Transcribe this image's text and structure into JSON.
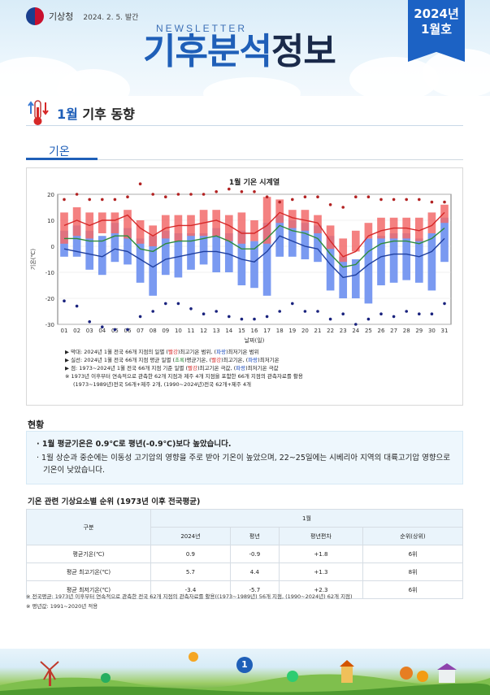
{
  "header": {
    "org": "기상청",
    "date": "2024. 2. 5. 발간",
    "newsletter": "NEWSLETTER",
    "title_bold": "기후분석",
    "title_rest": "정보",
    "badge_year": "2024년",
    "badge_issue": "1월호"
  },
  "section": {
    "month": "1월",
    "title": " 기후 동향",
    "subtitle": "기온"
  },
  "chart_data": {
    "type": "bar",
    "title": "1월 기온 시계열",
    "xlabel": "날짜(일)",
    "ylabel": "기온(℃)",
    "ylim": [
      -30,
      20
    ],
    "yticks": [
      20,
      10,
      0,
      -10,
      -20,
      -30
    ],
    "categories": [
      "01",
      "02",
      "03",
      "04",
      "05",
      "06",
      "07",
      "08",
      "09",
      "10",
      "11",
      "12",
      "13",
      "14",
      "15",
      "16",
      "17",
      "18",
      "19",
      "20",
      "21",
      "22",
      "23",
      "24",
      "25",
      "26",
      "27",
      "28",
      "29",
      "30",
      "31"
    ],
    "bars_tmax_range": {
      "low": [
        1,
        4,
        3,
        5,
        5,
        3,
        1,
        0,
        3,
        2,
        4,
        4,
        4,
        2,
        1,
        2,
        1,
        9,
        7,
        6,
        5,
        -1,
        -6,
        -2,
        3,
        3,
        3,
        3,
        2,
        5,
        9
      ],
      "high": [
        13,
        15,
        13,
        13,
        13,
        14,
        10,
        8,
        12,
        12,
        12,
        14,
        14,
        12,
        13,
        10,
        19,
        18,
        14,
        14,
        12,
        8,
        3,
        6,
        9,
        11,
        11,
        11,
        11,
        13,
        16
      ]
    },
    "bars_tmin_range": {
      "low": [
        -4,
        -4,
        -9,
        -11,
        -6,
        -7,
        -14,
        -19,
        -11,
        -12,
        -9,
        -7,
        -10,
        -10,
        -15,
        -16,
        -19,
        -4,
        -4,
        -5,
        -6,
        -17,
        -20,
        -20,
        -22,
        -15,
        -14,
        -13,
        -14,
        -17,
        -6
      ],
      "high": [
        6,
        8,
        6,
        4,
        9,
        7,
        3,
        4,
        6,
        5,
        5,
        5,
        7,
        5,
        6,
        2,
        9,
        12,
        10,
        9,
        8,
        4,
        -4,
        -5,
        3,
        4,
        5,
        5,
        3,
        5,
        11
      ]
    },
    "line_tmax": [
      8,
      10,
      8,
      10,
      10,
      12,
      7,
      4,
      7,
      8,
      8,
      9,
      10,
      8,
      5,
      5,
      8,
      13,
      11,
      10,
      9,
      2,
      -4,
      -2,
      4,
      6,
      7,
      7,
      6,
      8,
      13
    ],
    "line_tavg": [
      3,
      3,
      2,
      2,
      4,
      4,
      -1,
      -2,
      1,
      2,
      2,
      3,
      4,
      2,
      -1,
      -1,
      3,
      8,
      6,
      5,
      3,
      -3,
      -8,
      -7,
      -2,
      1,
      2,
      2,
      1,
      3,
      7
    ],
    "line_tmin": [
      -1,
      -2,
      -3,
      -4,
      -1,
      -2,
      -5,
      -8,
      -5,
      -4,
      -3,
      -2,
      -2,
      -3,
      -5,
      -6,
      -2,
      4,
      2,
      0,
      -1,
      -7,
      -12,
      -11,
      -7,
      -4,
      -3,
      -3,
      -4,
      -2,
      3
    ],
    "extreme_high": [
      18,
      20,
      18,
      18,
      18,
      19,
      24,
      20,
      19,
      20,
      20,
      20,
      21,
      22,
      21,
      21,
      19,
      17,
      18,
      19,
      19,
      16,
      15,
      19,
      19,
      18,
      18,
      18,
      18,
      17,
      17
    ],
    "extreme_low": [
      -21,
      -23,
      -29,
      -31,
      -32,
      -32,
      -27,
      -25,
      -22,
      -22,
      -24,
      -26,
      -25,
      -27,
      -28,
      -28,
      -27,
      -25,
      -22,
      -25,
      -25,
      -28,
      -26,
      -30,
      -28,
      -26,
      -27,
      -25,
      -26,
      -26,
      -22
    ],
    "notes": {
      "n1a": "▶ 막대: 2024년 1월 전국 66개 지점의 일별 (",
      "n1r": "빨강",
      "n1b": ")최고기온 범위, (",
      "n1bl": "파랑",
      "n1c": ")최저기온 범위",
      "n2a": "▶ 실선: 2024년 1월 전국 66개 지점 평균 일별 (",
      "n2g": "초록",
      "n2b": ")평균기온, (",
      "n2r": "빨강",
      "n2c": ")최고기온, (",
      "n2bl": "파랑",
      "n2d": ")최저기온",
      "n3a": "▶ 점: 1973~2024년 1월 전국 66개 지점 기준 일별 (",
      "n3r": "빨강",
      "n3b": ")최고기온 극값, (",
      "n3bl": "파랑",
      "n3c": ")최저기온 극값",
      "n4": "※ 1973년 이후부터 연속적으로 관측한 62개 지점과 제주 4개 지점을 포함한 66개 지점의 관측자료를 활용",
      "n5": "(1973~1989년)전국 56개+제주 2개, (1990~2024년)전국 62개+제주 4개"
    }
  },
  "status": {
    "heading": "현황",
    "p1": "· 1월 평균기온은 0.9℃로 평년(-0.9℃)보다 높았습니다.",
    "p2": "· 1월 상순과 중순에는 이동성 고기압의 영향을 주로 받아 기온이 높았으며, 22~25일에는 시베리아 지역의 대륙고기압 영향으로 기온이 낮았습니다."
  },
  "table": {
    "heading": "기온 관련 기상요소별 순위 (1973년 이후 전국평균)",
    "col_group": "구분",
    "month": "1월",
    "cols": [
      "2024년",
      "평년",
      "평년편차",
      "순위(상위)"
    ],
    "rows": [
      {
        "label": "평균기온(℃)",
        "v": [
          "0.9",
          "-0.9",
          "+1.8",
          "6위"
        ]
      },
      {
        "label": "평균 최고기온(℃)",
        "v": [
          "5.7",
          "4.4",
          "+1.3",
          "8위"
        ]
      },
      {
        "label": "평균 최저기온(℃)",
        "v": [
          "-3.4",
          "-5.7",
          "+2.3",
          "6위"
        ]
      }
    ]
  },
  "footnotes": {
    "f1": "※ 전국평균: 1973년 이후부터 연속적으로 관측한 전국 62개 지점의 관측자료를 활용((1973~1989년) 56개 지점, (1990~2024년) 62개 지점)",
    "f2": "※ 평년값: 1991~2020년 적용"
  },
  "page_number": "1",
  "colors": {
    "accent": "#1f5fb8",
    "tmax_bar": "#f26b6b",
    "tmin_bar": "#6b8ff0",
    "avg_line": "#2e8b3a"
  }
}
